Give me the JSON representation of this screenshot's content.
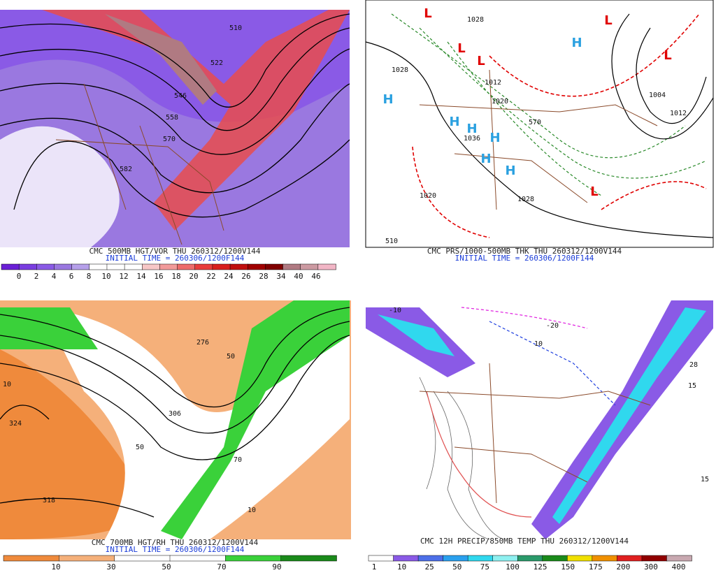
{
  "panels": [
    {
      "caption": "CMC 500MB HGT/VOR THU 260312/1200V144",
      "initial_time": "INITIAL TIME = 260306/1200F144",
      "map_labels": [
        "510",
        "522",
        "546",
        "558",
        "570",
        "582"
      ],
      "colorbar": {
        "labels": [
          "0",
          "2",
          "4",
          "6",
          "8",
          "10",
          "12",
          "14",
          "16",
          "18",
          "20",
          "22",
          "24",
          "26",
          "28",
          "34",
          "40",
          "46"
        ],
        "colors": [
          "#6a1fd6",
          "#7a3ee0",
          "#8a5ae6",
          "#9a78e0",
          "#b6a0ea",
          "#ffffff",
          "#ffffff",
          "#ffffff",
          "#f7c7c7",
          "#f29a9a",
          "#ee6b6b",
          "#e83c3c",
          "#d81e1e",
          "#c00f0f",
          "#a00000",
          "#800000",
          "#b07a82",
          "#cc9aa2",
          "#f2b6c6"
        ]
      }
    },
    {
      "caption": "CMC PRS/1000-500MB THK THU 260312/1200V144",
      "initial_time": "INITIAL TIME = 260306/1200F144",
      "map_labels": [
        "1028",
        "1028",
        "1012",
        "1020",
        "1036",
        "1020",
        "1028",
        "510",
        "570",
        "1004",
        "1012",
        "H",
        "H",
        "H",
        "H",
        "H",
        "H",
        "H",
        "L",
        "L",
        "L",
        "L",
        "L",
        "L"
      ]
    },
    {
      "caption": "CMC 700MB HGT/RH THU 260312/1200V144",
      "initial_time": "INITIAL TIME = 260306/1200F144",
      "map_labels": [
        "276",
        "306",
        "324",
        "318",
        "50",
        "50",
        "10",
        "10",
        "70"
      ],
      "colorbar": {
        "labels": [
          "10",
          "30",
          "50",
          "70",
          "90"
        ],
        "colors": [
          "#ef8a3c",
          "#f5b07a",
          "#ffffff",
          "#ffffff",
          "#3ad13a",
          "#1a8a1a"
        ]
      }
    },
    {
      "caption": "CMC 12H PRECIP/850MB TEMP THU 260312/1200V144",
      "map_labels": [
        "-10",
        "10",
        "-20",
        "28",
        "15",
        "15"
      ],
      "colorbar": {
        "labels": [
          "1",
          "10",
          "25",
          "50",
          "75",
          "100",
          "125",
          "150",
          "175",
          "200",
          "300",
          "400"
        ],
        "colors": [
          "#ffffff",
          "#8a5ae6",
          "#4d6fe8",
          "#2aa0ee",
          "#30d8ee",
          "#8ef0f0",
          "#2a9a6a",
          "#1a8a1a",
          "#f0e000",
          "#f09000",
          "#e02020",
          "#900000",
          "#c8a8b0"
        ]
      }
    }
  ]
}
